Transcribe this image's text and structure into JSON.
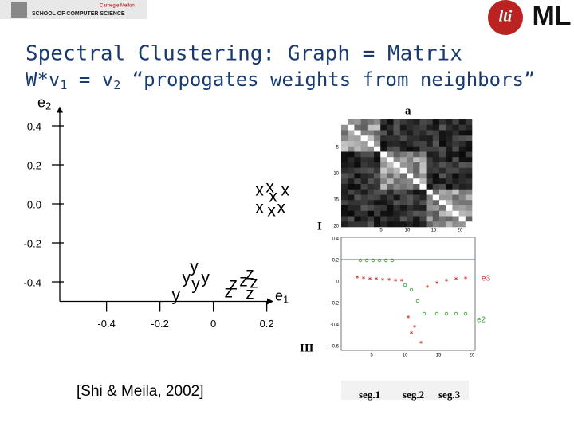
{
  "header": {
    "university": "Carnegie Mellon",
    "school": "SCHOOL OF COMPUTER SCIENCE",
    "logo_left": "lti",
    "logo_right": "ML"
  },
  "chart_data": {
    "type": "scatter",
    "title": "Spectral Clustering: Graph = Matrix",
    "subtitle": [
      "W*v",
      "1",
      " = v",
      "2",
      " “propogates weights from neighbors”"
    ],
    "x_label": [
      "e",
      "1"
    ],
    "y_label": [
      "e",
      "2"
    ],
    "xlim": [
      -0.575,
      0.225
    ],
    "ylim": [
      -0.5,
      0.5
    ],
    "xticks": [
      -0.4,
      -0.2,
      0,
      0.2
    ],
    "yticks": [
      0.4,
      0.2,
      {
        "value": 0,
        "label": "0.0"
      },
      -0.2,
      -0.4
    ],
    "series": [
      {
        "name": "x",
        "color": "#000000",
        "x": [
          0.173,
          0.212,
          0.269,
          0.224,
          0.173,
          0.218,
          0.254
        ],
        "values": [
          0.065,
          0.082,
          0.065,
          0.033,
          -0.024,
          -0.041,
          -0.024
        ]
      },
      {
        "name": "y",
        "color": "#000000",
        "x": [
          -0.072,
          -0.101,
          -0.03,
          -0.066,
          -0.14
        ],
        "values": [
          -0.327,
          -0.384,
          -0.384,
          -0.416,
          -0.473
        ]
      },
      {
        "name": "z",
        "color": "#000000",
        "x": [
          0.137,
          0.075,
          0.113,
          0.152,
          0.057,
          0.137
        ],
        "values": [
          -0.363,
          -0.416,
          -0.4,
          -0.408,
          -0.457,
          -0.465
        ]
      }
    ]
  },
  "citation": "[Shi & Meila, 2002]",
  "figure": {
    "panel_a": "a",
    "label_I": "I",
    "label_III": "III",
    "heatmap_yticks": [
      "5",
      "10",
      "15",
      "20"
    ],
    "heatmap_xticks": [
      "5",
      "10",
      "15",
      "20"
    ],
    "plot_yticks": [
      "0.4",
      "0.2",
      "0",
      "-0.2",
      "-0.4",
      "-0.6"
    ],
    "plot_xticks": [
      "5",
      "10",
      "15",
      "20"
    ],
    "legend": [
      "e3",
      "e2"
    ],
    "segments": [
      "seg.1",
      "seg.2",
      "seg.3"
    ]
  }
}
